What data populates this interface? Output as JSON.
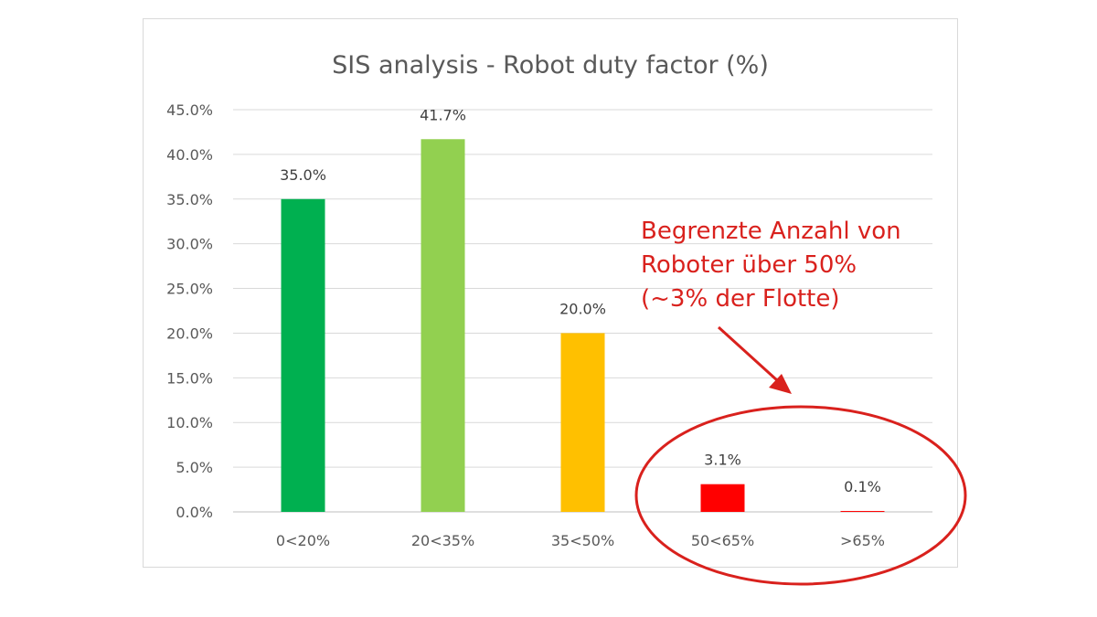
{
  "chart_data": {
    "type": "bar",
    "title": "SIS analysis - Robot duty factor (%)",
    "xlabel": "",
    "ylabel": "",
    "categories": [
      "0<20%",
      "20<35%",
      "35<50%",
      "50<65%",
      ">65%"
    ],
    "values": [
      35.0,
      41.7,
      20.0,
      3.1,
      0.1
    ],
    "value_labels": [
      "35.0%",
      "41.7%",
      "20.0%",
      "3.1%",
      "0.1%"
    ],
    "bar_colors": [
      "#00b050",
      "#92d050",
      "#ffc000",
      "#ff0000",
      "#ff0000"
    ],
    "ylim": [
      0,
      45
    ],
    "yticks": [
      0,
      5,
      10,
      15,
      20,
      25,
      30,
      35,
      40,
      45
    ],
    "ytick_labels": [
      "0.0%",
      "5.0%",
      "10.0%",
      "15.0%",
      "20.0%",
      "25.0%",
      "30.0%",
      "35.0%",
      "40.0%",
      "45.0%"
    ],
    "grid": true,
    "legend": "none"
  },
  "annotation": {
    "lines": [
      "Begrenzte Anzahl von",
      "Roboter über 50%",
      "(~3% der Flotte)"
    ],
    "color": "#d9211d",
    "highlights": [
      "50<65%",
      ">65%"
    ]
  }
}
